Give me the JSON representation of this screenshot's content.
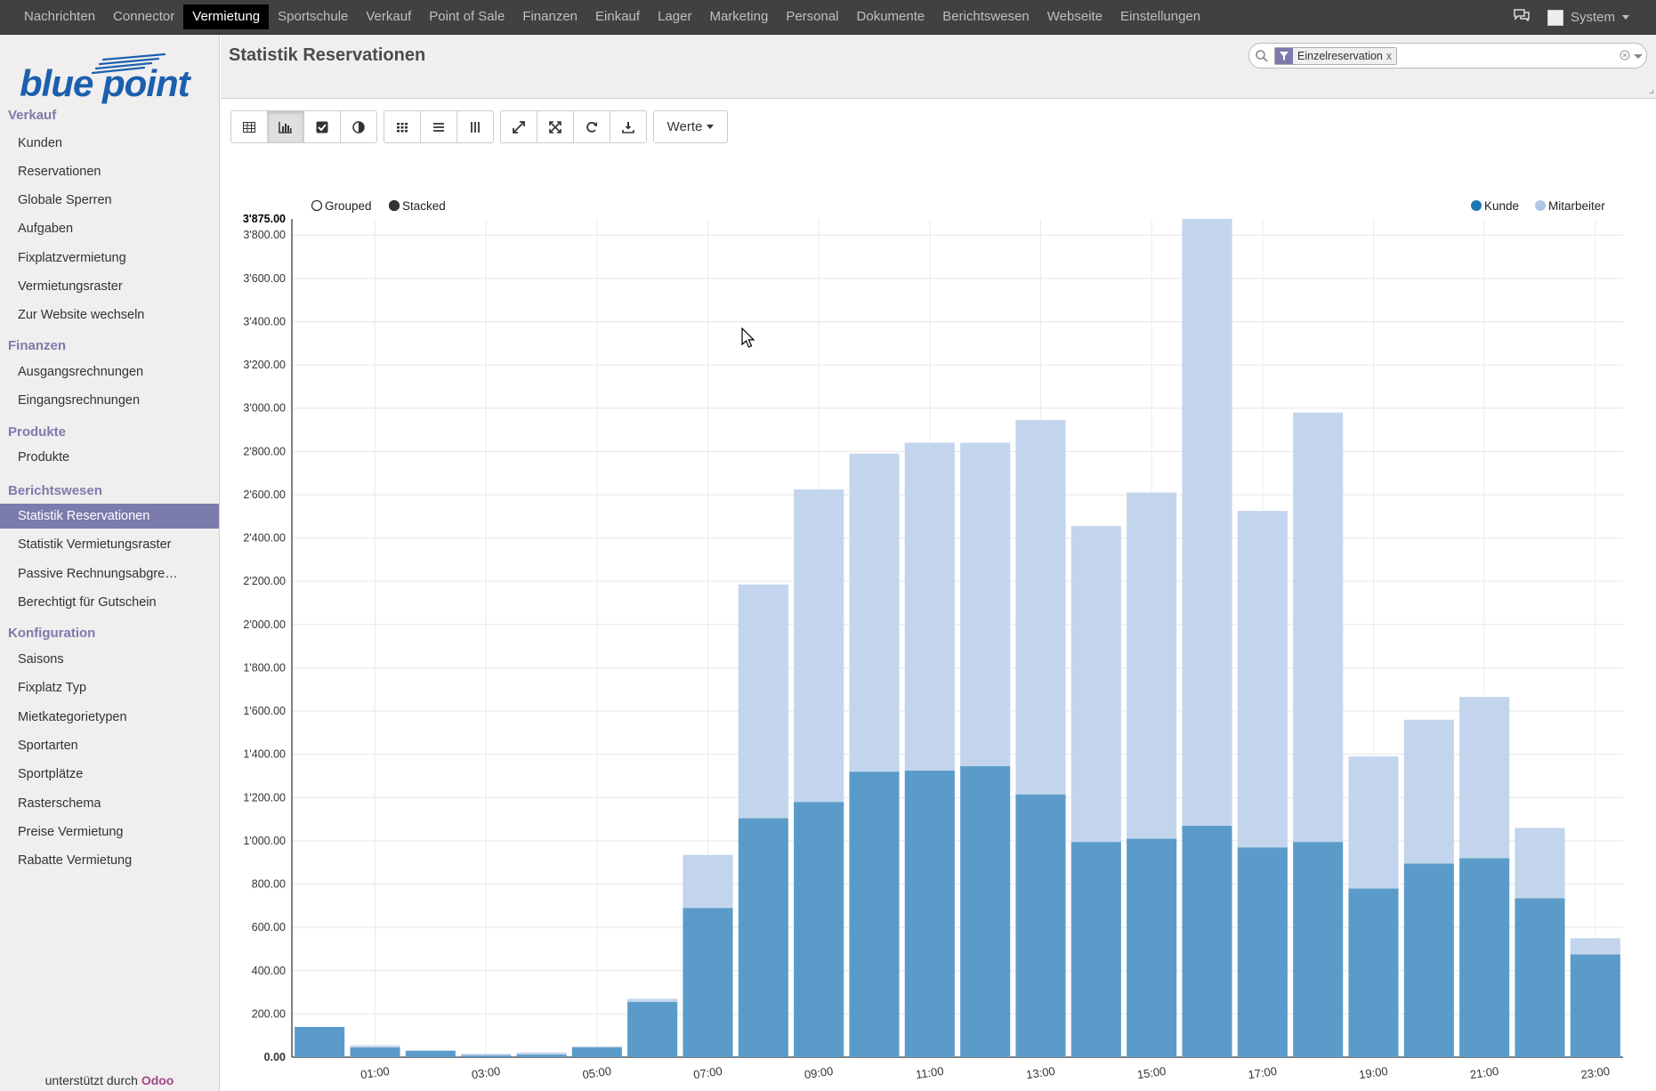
{
  "topbar": {
    "menu": [
      "Nachrichten",
      "Connector",
      "Vermietung",
      "Sportschule",
      "Verkauf",
      "Point of Sale",
      "Finanzen",
      "Einkauf",
      "Lager",
      "Marketing",
      "Personal",
      "Dokumente",
      "Berichtswesen",
      "Webseite",
      "Einstellungen"
    ],
    "active": "Vermietung",
    "user": "System"
  },
  "sidebar": {
    "logo_text": "blue point",
    "sections": [
      {
        "title": "Verkauf",
        "items": [
          "Kunden",
          "Reservationen",
          "Globale Sperren",
          "Aufgaben",
          "Fixplatzvermietung",
          "Vermietungsraster",
          "Zur Website wechseln"
        ]
      },
      {
        "title": "Finanzen",
        "items": [
          "Ausgangsrechnungen",
          "Eingangsrechnungen"
        ]
      },
      {
        "title": "Produkte",
        "items": [
          "Produkte"
        ]
      },
      {
        "title": "Berichtswesen",
        "items": [
          "Statistik Reservationen",
          "Statistik Vermietungsraster",
          "Passive Rechnungsabgre…",
          "Berechtigt für Gutschein"
        ]
      },
      {
        "title": "Konfiguration",
        "items": [
          "Saisons",
          "Fixplatz Typ",
          "Mietkategorietypen",
          "Sportarten",
          "Sportplätze",
          "Rasterschema",
          "Preise Vermietung",
          "Rabatte Vermietung"
        ]
      }
    ],
    "active_item": "Statistik Reservationen",
    "powered_prefix": "unterstützt durch",
    "powered_brand": "Odoo"
  },
  "page": {
    "title": "Statistik Reservationen",
    "search_facet": "Einzelreservation",
    "search_facet_remove": "x",
    "measures_label": "Werte"
  },
  "colors": {
    "accent": "#7c7bad",
    "series_kunde": "#5b9bc9",
    "series_mitarbeiter": "#c2d5ec"
  },
  "chart_data": {
    "type": "bar",
    "mode_options": [
      "Grouped",
      "Stacked"
    ],
    "mode_selected": "Stacked",
    "legend_placement": "top-right",
    "categories": [
      "00:00",
      "01:00",
      "02:00",
      "03:00",
      "04:00",
      "05:00",
      "06:00",
      "07:00",
      "08:00",
      "09:00",
      "10:00",
      "11:00",
      "12:00",
      "13:00",
      "14:00",
      "15:00",
      "16:00",
      "17:00",
      "18:00",
      "19:00",
      "20:00",
      "21:00",
      "22:00",
      "23:00"
    ],
    "tick_labels_shown": [
      "01:00",
      "03:00",
      "05:00",
      "07:00",
      "09:00",
      "11:00",
      "13:00",
      "15:00",
      "17:00",
      "19:00",
      "21:00",
      "23:00"
    ],
    "series": [
      {
        "name": "Kunde",
        "color": "#5b9bc9",
        "values": [
          140,
          45,
          30,
          8,
          12,
          45,
          255,
          690,
          1105,
          1180,
          1320,
          1325,
          1345,
          1215,
          995,
          1010,
          1070,
          970,
          995,
          780,
          895,
          920,
          735,
          475
        ]
      },
      {
        "name": "Mitarbeiter",
        "color": "#c2d5ec",
        "values": [
          0,
          10,
          0,
          8,
          10,
          5,
          15,
          245,
          1080,
          1445,
          1470,
          1515,
          1495,
          1730,
          1460,
          1600,
          2805,
          1555,
          1985,
          610,
          665,
          745,
          325,
          75
        ]
      }
    ],
    "ylim": [
      0,
      3875
    ],
    "yticks": [
      "0.00",
      "200.00",
      "400.00",
      "600.00",
      "800.00",
      "1'000.00",
      "1'200.00",
      "1'400.00",
      "1'600.00",
      "1'800.00",
      "2'000.00",
      "2'200.00",
      "2'400.00",
      "2'600.00",
      "2'800.00",
      "3'000.00",
      "3'200.00",
      "3'400.00",
      "3'600.00",
      "3'800.00"
    ],
    "ymax_label": "3'875.00",
    "grid": true
  }
}
